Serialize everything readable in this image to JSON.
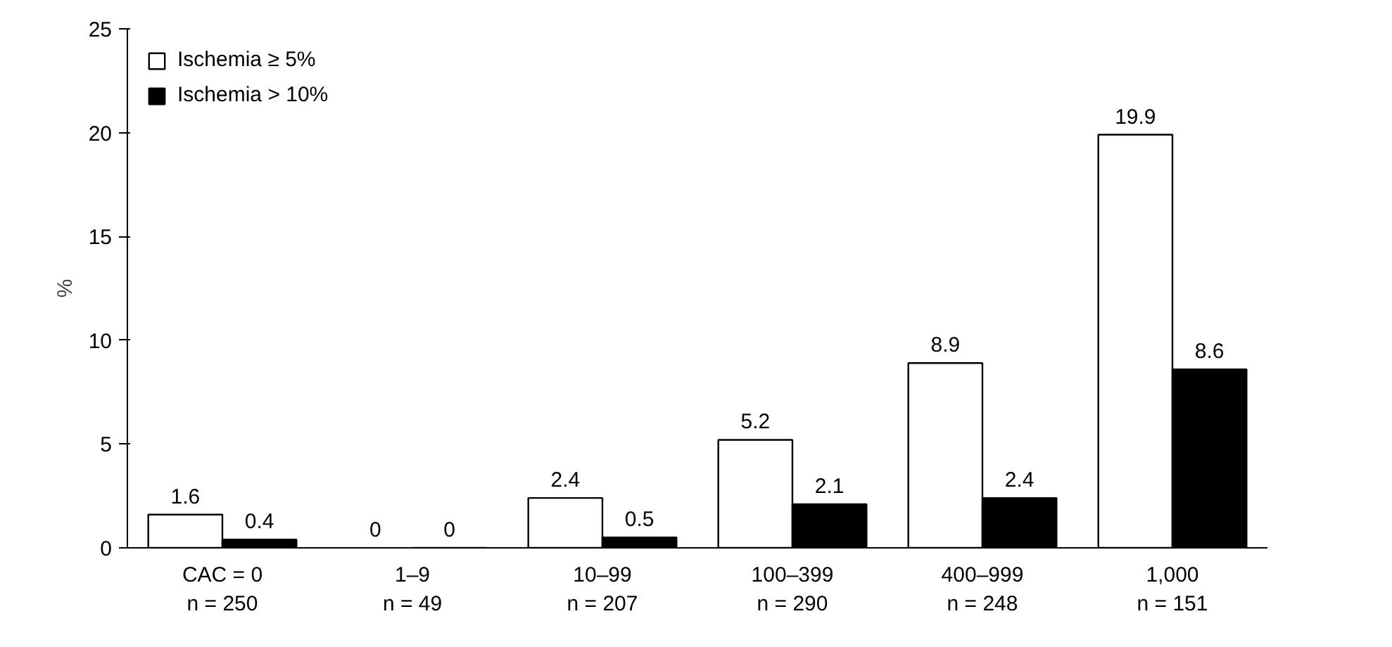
{
  "chart_data": {
    "type": "bar",
    "ylabel": "%",
    "categories": [
      "CAC = 0\nn = 250",
      "1–9\nn = 49",
      "10–99\nn = 207",
      "100–399\nn = 290",
      "400–999\nn = 248",
      "1,000\nn = 151"
    ],
    "series": [
      {
        "name": "Ischemia ≥ 5%",
        "color": "#ffffff",
        "values": [
          1.6,
          0,
          2.4,
          5.2,
          8.9,
          19.9
        ]
      },
      {
        "name": "Ischemia > 10%",
        "color": "#000000",
        "values": [
          0.4,
          0,
          0.5,
          2.1,
          2.4,
          8.6
        ]
      }
    ],
    "ylim": [
      0,
      25
    ],
    "yticks": [
      0,
      5,
      10,
      15,
      20,
      25
    ],
    "data_labels": true,
    "legend": "top left",
    "grid": false
  }
}
